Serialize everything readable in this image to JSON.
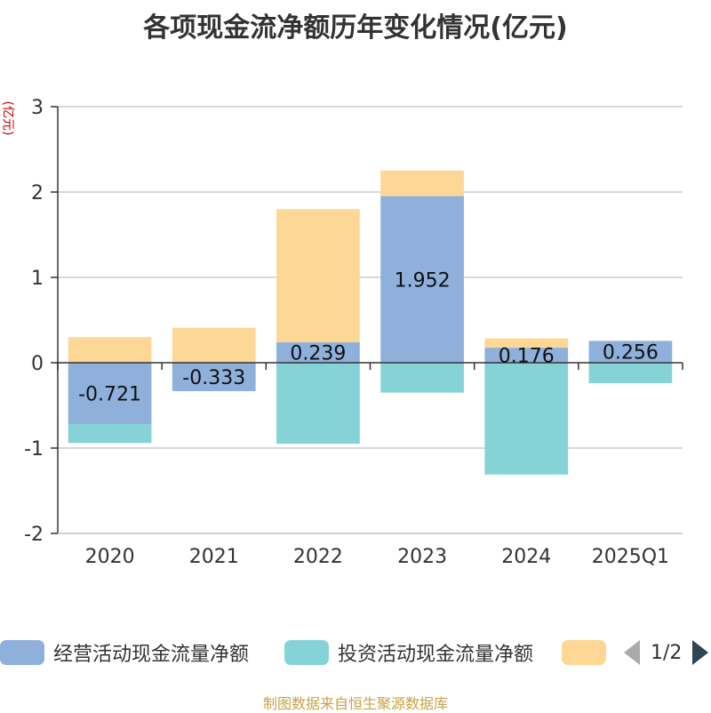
{
  "title": "各项现金流净额历年变化情况(亿元)",
  "unit": "(亿元)",
  "footer": "制图数据来自恒生聚源数据库",
  "colors": {
    "operating": "#8eb0db",
    "investing": "#85d3d6",
    "financing": "#fdd795",
    "axis": "#333333",
    "grid": "#cccccc"
  },
  "legend": {
    "items": [
      "经营活动现金流量净额",
      "投资活动现金流量净额",
      ""
    ],
    "page": "1/2"
  },
  "chart_data": {
    "type": "bar",
    "stacked": true,
    "categories": [
      "2020",
      "2021",
      "2022",
      "2023",
      "2024",
      "2025Q1"
    ],
    "ylim": [
      -2,
      3
    ],
    "yticks": [
      "-2",
      "-1",
      "0",
      "1",
      "2",
      "3"
    ],
    "grid": true,
    "legend_position": "bottom",
    "series": [
      {
        "name": "经营活动现金流量净额",
        "values": [
          -0.721,
          -0.333,
          0.239,
          1.952,
          0.176,
          0.256
        ],
        "labels": [
          "-0.721",
          "-0.333",
          "0.239",
          "1.952",
          "0.176",
          "0.256"
        ]
      },
      {
        "name": "投资活动现金流量净额",
        "values": [
          -0.22,
          0,
          -0.95,
          -0.35,
          -1.31,
          -0.24
        ]
      },
      {
        "values": [
          0.3,
          0.41,
          1.56,
          0.3,
          0.11,
          0
        ]
      }
    ]
  }
}
